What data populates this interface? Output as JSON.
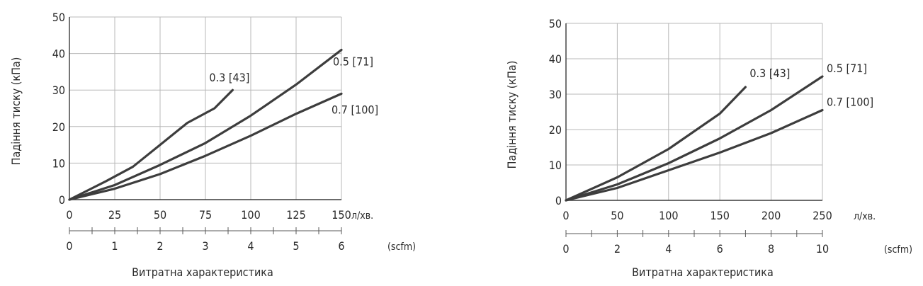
{
  "chart_data": [
    {
      "type": "line",
      "ylabel": "Падіння тиску (кПа)",
      "xlabel": "Витратна характеристика",
      "x_unit": "л/хв.",
      "x2_unit": "(scfm)",
      "xlim": [
        0,
        150
      ],
      "ylim": [
        0,
        50
      ],
      "xticks": [
        "0",
        "25",
        "50",
        "75",
        "100",
        "125",
        "150"
      ],
      "yticks": [
        "0",
        "10",
        "20",
        "30",
        "40",
        "50"
      ],
      "x2lim": [
        0,
        6
      ],
      "x2ticks": [
        "0",
        "1",
        "2",
        "3",
        "4",
        "5",
        "6"
      ],
      "grid": true,
      "series": [
        {
          "name": "0.3 [43]",
          "x": [
            0,
            20,
            35,
            50,
            65,
            80,
            90
          ],
          "y": [
            0,
            5,
            9,
            15,
            21,
            25,
            30
          ]
        },
        {
          "name": "0.5 [71]",
          "x": [
            0,
            25,
            50,
            75,
            100,
            125,
            150
          ],
          "y": [
            0,
            4,
            9.5,
            15.5,
            23,
            31.5,
            41
          ]
        },
        {
          "name": "0.7 [100]",
          "x": [
            0,
            25,
            50,
            75,
            100,
            125,
            150
          ],
          "y": [
            0,
            3,
            7,
            12,
            17.5,
            23.5,
            29
          ]
        }
      ]
    },
    {
      "type": "line",
      "ylabel": "Падіння тиску (кПа)",
      "xlabel": "Витратна характеристика",
      "x_unit": "л/хв.",
      "x2_unit": "(scfm)",
      "xlim": [
        0,
        250
      ],
      "ylim": [
        0,
        50
      ],
      "xticks": [
        "0",
        "50",
        "100",
        "150",
        "200",
        "250"
      ],
      "yticks": [
        "0",
        "10",
        "20",
        "30",
        "40",
        "50"
      ],
      "x2lim": [
        0,
        10
      ],
      "x2ticks": [
        "0",
        "2",
        "4",
        "6",
        "8",
        "10"
      ],
      "grid": true,
      "series": [
        {
          "name": "0.3 [43]",
          "x": [
            0,
            50,
            100,
            150,
            175
          ],
          "y": [
            0,
            6.5,
            14.5,
            24.5,
            32
          ]
        },
        {
          "name": "0.5 [71]",
          "x": [
            0,
            50,
            100,
            150,
            200,
            250
          ],
          "y": [
            0,
            4.5,
            10.5,
            17.5,
            25.5,
            35
          ]
        },
        {
          "name": "0.7 [100]",
          "x": [
            0,
            50,
            100,
            150,
            200,
            250
          ],
          "y": [
            0,
            3.5,
            8.5,
            13.5,
            19,
            25.5
          ]
        }
      ]
    }
  ]
}
